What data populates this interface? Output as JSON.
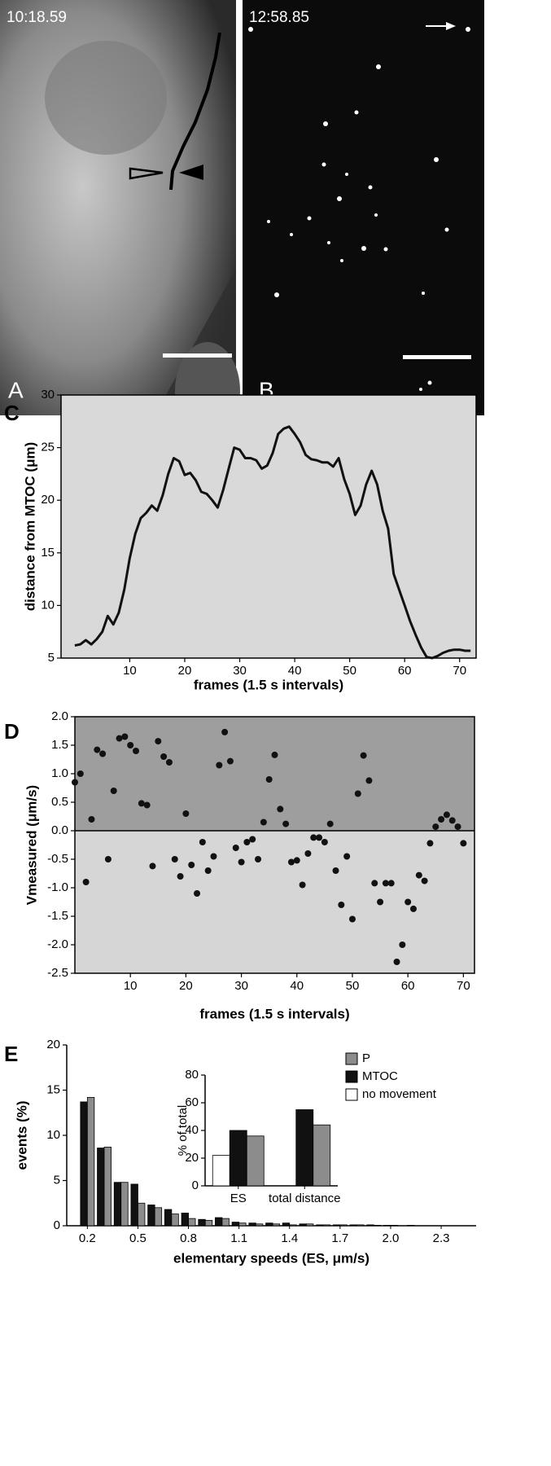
{
  "micrographs": [
    {
      "timestamp": "10:18.59",
      "panel": "A"
    },
    {
      "timestamp": "12:58.85",
      "panel": "B"
    }
  ],
  "chart_data": [
    {
      "type": "line",
      "panel": "C",
      "x_label": "frames (1.5 s intervals)",
      "y_label": "distance from MTOC (μm)",
      "color": "#111111",
      "x": [
        0,
        1,
        2,
        3,
        4,
        5,
        6,
        7,
        8,
        9,
        10,
        11,
        12,
        13,
        14,
        15,
        16,
        17,
        18,
        19,
        20,
        21,
        22,
        23,
        24,
        25,
        26,
        27,
        28,
        29,
        30,
        31,
        32,
        33,
        34,
        35,
        36,
        37,
        38,
        39,
        40,
        41,
        42,
        43,
        44,
        45,
        46,
        47,
        48,
        49,
        50,
        51,
        52,
        53,
        54,
        55,
        56,
        57,
        58,
        59,
        60,
        61,
        62,
        63,
        64,
        65,
        66,
        67,
        68,
        69,
        70,
        71,
        72
      ],
      "values": [
        6.2,
        6.3,
        6.7,
        6.3,
        6.8,
        7.5,
        9,
        8.2,
        9.3,
        11.5,
        14.5,
        16.8,
        18.3,
        18.8,
        19.5,
        19,
        20.5,
        22.5,
        24,
        23.7,
        22.4,
        22.6,
        21.9,
        20.8,
        20.6,
        20,
        19.3,
        21,
        23,
        25,
        24.8,
        24,
        24,
        23.8,
        23,
        23.3,
        24.5,
        26.3,
        26.8,
        27,
        26.3,
        25.5,
        24.3,
        23.9,
        23.8,
        23.6,
        23.6,
        23.2,
        24,
        22,
        20.6,
        18.6,
        19.5,
        21.5,
        22.8,
        21.5,
        19,
        17.3,
        13,
        11.5,
        10,
        8.5,
        7.2,
        6,
        5.1,
        5,
        5.2,
        5.5,
        5.7,
        5.8,
        5.8,
        5.7,
        5.7
      ],
      "xlim": [
        -2.5,
        73
      ],
      "xticks": [
        10,
        20,
        30,
        40,
        50,
        60,
        70
      ],
      "ylim": [
        5,
        30
      ],
      "yticks": [
        5,
        10,
        15,
        20,
        25,
        30
      ]
    },
    {
      "type": "scatter",
      "panel": "D",
      "x_label": "frames (1.5 s intervals)",
      "y_label": "Vmeasured (μm/s)",
      "color": "#111111",
      "x": [
        0,
        1,
        2,
        3,
        4,
        5,
        6,
        7,
        8,
        9,
        10,
        11,
        12,
        13,
        14,
        15,
        16,
        17,
        18,
        19,
        20,
        21,
        22,
        23,
        24,
        25,
        26,
        27,
        28,
        29,
        30,
        31,
        32,
        33,
        34,
        35,
        36,
        37,
        38,
        39,
        40,
        41,
        42,
        43,
        44,
        45,
        46,
        47,
        48,
        49,
        50,
        51,
        52,
        53,
        54,
        55,
        56,
        57,
        58,
        59,
        60,
        61,
        62,
        63,
        64,
        65,
        66,
        67,
        68,
        69,
        70
      ],
      "values": [
        0.85,
        1.0,
        -0.9,
        0.2,
        1.42,
        1.35,
        -0.5,
        0.7,
        1.62,
        1.65,
        1.5,
        1.4,
        0.48,
        0.45,
        -0.62,
        1.57,
        1.3,
        1.2,
        -0.5,
        -0.8,
        0.3,
        -0.6,
        -1.1,
        -0.2,
        -0.7,
        -0.45,
        1.15,
        1.73,
        1.22,
        -0.3,
        -0.55,
        -0.2,
        -0.15,
        -0.5,
        0.15,
        0.9,
        1.33,
        0.38,
        0.12,
        -0.55,
        -0.52,
        -0.95,
        -0.4,
        -0.12,
        -0.12,
        -0.2,
        0.12,
        -0.7,
        -1.3,
        -0.45,
        -1.55,
        0.65,
        1.32,
        0.88,
        -0.92,
        -1.25,
        -0.92,
        -0.92,
        -2.3,
        -2.0,
        -1.25,
        -1.37,
        -0.78,
        -0.88,
        -0.22,
        0.07,
        0.2,
        0.28,
        0.18,
        0.07,
        -0.22
      ],
      "xlim": [
        0,
        72
      ],
      "xticks": [
        10,
        20,
        30,
        40,
        50,
        60,
        70
      ],
      "ylim": [
        -2.5,
        2.0
      ],
      "yticks": [
        {
          "value": -2.5,
          "label": "-2.5"
        },
        {
          "value": -2,
          "label": "-2.0"
        },
        {
          "value": -1.5,
          "label": "-1.5"
        },
        {
          "value": -1,
          "label": "-1.0"
        },
        {
          "value": -0.5,
          "label": "-0.5"
        },
        {
          "value": 0,
          "label": "0.0"
        },
        {
          "value": 0.5,
          "label": "0.5"
        },
        {
          "value": 1,
          "label": "1.0"
        },
        {
          "value": 1.5,
          "label": "1.5"
        },
        {
          "value": 2,
          "label": "2.0"
        }
      ]
    },
    {
      "type": "bar",
      "panel": "E",
      "x_label": "elementary speeds (ES, μm/s)",
      "y_label": "events (%)",
      "categories": [
        "0.2",
        null,
        null,
        "0.5",
        null,
        null,
        "0.8",
        null,
        null,
        "1.1",
        null,
        null,
        "1.4",
        null,
        null,
        "1.7",
        null,
        null,
        "2.0",
        null,
        null,
        "2.3"
      ],
      "series": [
        {
          "color": "#111111",
          "values": [
            13.7,
            8.6,
            4.8,
            4.6,
            2.3,
            1.8,
            1.4,
            0.7,
            0.9,
            0.4,
            0.3,
            0.3,
            0.3,
            0.2,
            0.1,
            0.1,
            0.1,
            0.1,
            0.05,
            0,
            0,
            0
          ]
        },
        {
          "color": "#8c8c8c",
          "values": [
            14.2,
            8.7,
            4.8,
            2.5,
            2.0,
            1.3,
            0.8,
            0.6,
            0.8,
            0.3,
            0.2,
            0.2,
            0.1,
            0.2,
            0.1,
            0.1,
            0.1,
            0.05,
            0.05,
            0.05,
            0,
            0
          ]
        }
      ],
      "ylim": [
        0,
        20
      ],
      "yticks": [
        0,
        5,
        10,
        15,
        20
      ]
    },
    {
      "type": "bar",
      "y_label": "% of total",
      "categories": [
        "ES",
        "total distance"
      ],
      "series": [
        {
          "name": "no movement",
          "color": "#ffffff",
          "values": [
            22,
            null
          ]
        },
        {
          "name": "MTOC",
          "color": "#111111",
          "values": [
            40,
            55
          ]
        },
        {
          "name": "P",
          "color": "#8c8c8c",
          "values": [
            36,
            44
          ]
        }
      ],
      "ylim": [
        0,
        80
      ],
      "yticks": [
        0,
        20,
        40,
        60,
        80
      ],
      "legend": "upper right"
    }
  ]
}
